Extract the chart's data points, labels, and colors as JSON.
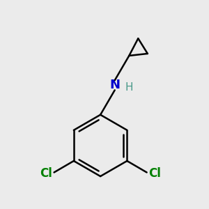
{
  "background_color": "#ebebeb",
  "bond_color": "#000000",
  "bond_width": 1.8,
  "N_color": "#0000cc",
  "Cl_color": "#008000",
  "H_color": "#4a9a8a",
  "font_size_N": 13,
  "font_size_Cl": 12,
  "font_size_H": 11,
  "figsize": [
    3.0,
    3.0
  ],
  "dpi": 100,
  "xlim": [
    -2.2,
    2.2
  ],
  "ylim": [
    -2.8,
    2.2
  ]
}
